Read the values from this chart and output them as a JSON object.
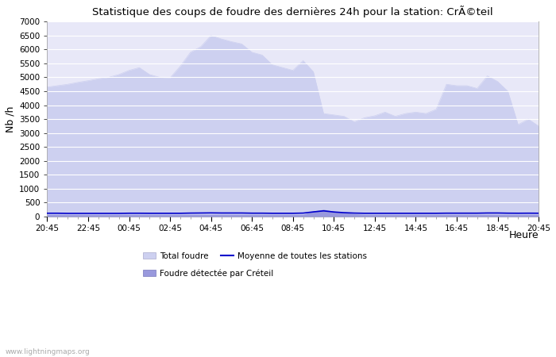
{
  "title": "Statistique des coups de foudre des dernières 24h pour la station: CrÃ©teil",
  "xlabel": "Heure",
  "ylabel": "Nb /h",
  "ylim": [
    0,
    7000
  ],
  "yticks": [
    0,
    500,
    1000,
    1500,
    2000,
    2500,
    3000,
    3500,
    4000,
    4500,
    5000,
    5500,
    6000,
    6500,
    7000
  ],
  "xtick_labels": [
    "20:45",
    "22:45",
    "00:45",
    "02:45",
    "04:45",
    "06:45",
    "08:45",
    "10:45",
    "12:45",
    "14:45",
    "16:45",
    "18:45",
    "20:45"
  ],
  "background_color": "#ffffff",
  "plot_bg_color": "#e8e8f8",
  "grid_color": "#ffffff",
  "watermark": "www.lightningmaps.org",
  "total_foudre_color": "#cdd0f0",
  "detected_color": "#9999dd",
  "moyenne_color": "#0000cc",
  "total_x": [
    0,
    1,
    2,
    3,
    4,
    5,
    6,
    7,
    8,
    9,
    10,
    11,
    12,
    13,
    14,
    15,
    16,
    17,
    18,
    19,
    20,
    21,
    22,
    23,
    24,
    25,
    26,
    27,
    28,
    29,
    30,
    31,
    32,
    33,
    34,
    35,
    36,
    37,
    38,
    39,
    40,
    41,
    42,
    43,
    44,
    45,
    46,
    47,
    48
  ],
  "total_y": [
    4650,
    4700,
    4750,
    4820,
    4880,
    4950,
    5000,
    5100,
    5250,
    5350,
    5100,
    5000,
    4980,
    5400,
    5900,
    6100,
    6500,
    6380,
    6280,
    6200,
    5900,
    5800,
    5450,
    5350,
    5250,
    5600,
    5200,
    3700,
    3650,
    3600,
    3400,
    3550,
    3620,
    3750,
    3600,
    3700,
    3750,
    3700,
    3850,
    4750,
    4700,
    4700,
    4600,
    5050,
    4850,
    4500,
    3300,
    3500,
    3250
  ],
  "detected_x": [
    0,
    1,
    2,
    3,
    4,
    5,
    6,
    7,
    8,
    9,
    10,
    11,
    12,
    13,
    14,
    15,
    16,
    17,
    18,
    19,
    20,
    21,
    22,
    23,
    24,
    25,
    26,
    27,
    28,
    29,
    30,
    31,
    32,
    33,
    34,
    35,
    36,
    37,
    38,
    39,
    40,
    41,
    42,
    43,
    44,
    45,
    46,
    47,
    48
  ],
  "detected_y": [
    80,
    80,
    80,
    80,
    80,
    80,
    80,
    80,
    80,
    80,
    80,
    80,
    80,
    80,
    80,
    80,
    80,
    80,
    80,
    80,
    80,
    80,
    80,
    80,
    80,
    80,
    200,
    260,
    190,
    150,
    100,
    80,
    80,
    80,
    80,
    80,
    80,
    80,
    80,
    80,
    80,
    80,
    80,
    80,
    80,
    80,
    80,
    80,
    80
  ],
  "moyenne_x": [
    0,
    1,
    2,
    3,
    4,
    5,
    6,
    7,
    8,
    9,
    10,
    11,
    12,
    13,
    14,
    15,
    16,
    17,
    18,
    19,
    20,
    21,
    22,
    23,
    24,
    25,
    26,
    27,
    28,
    29,
    30,
    31,
    32,
    33,
    34,
    35,
    36,
    37,
    38,
    39,
    40,
    41,
    42,
    43,
    44,
    45,
    46,
    47,
    48
  ],
  "moyenne_y": [
    120,
    120,
    115,
    115,
    115,
    115,
    115,
    115,
    120,
    120,
    118,
    118,
    118,
    118,
    125,
    128,
    132,
    128,
    128,
    128,
    122,
    122,
    118,
    118,
    118,
    125,
    168,
    205,
    165,
    140,
    125,
    118,
    118,
    118,
    118,
    118,
    118,
    118,
    118,
    122,
    122,
    122,
    122,
    128,
    128,
    122,
    120,
    122,
    120
  ]
}
